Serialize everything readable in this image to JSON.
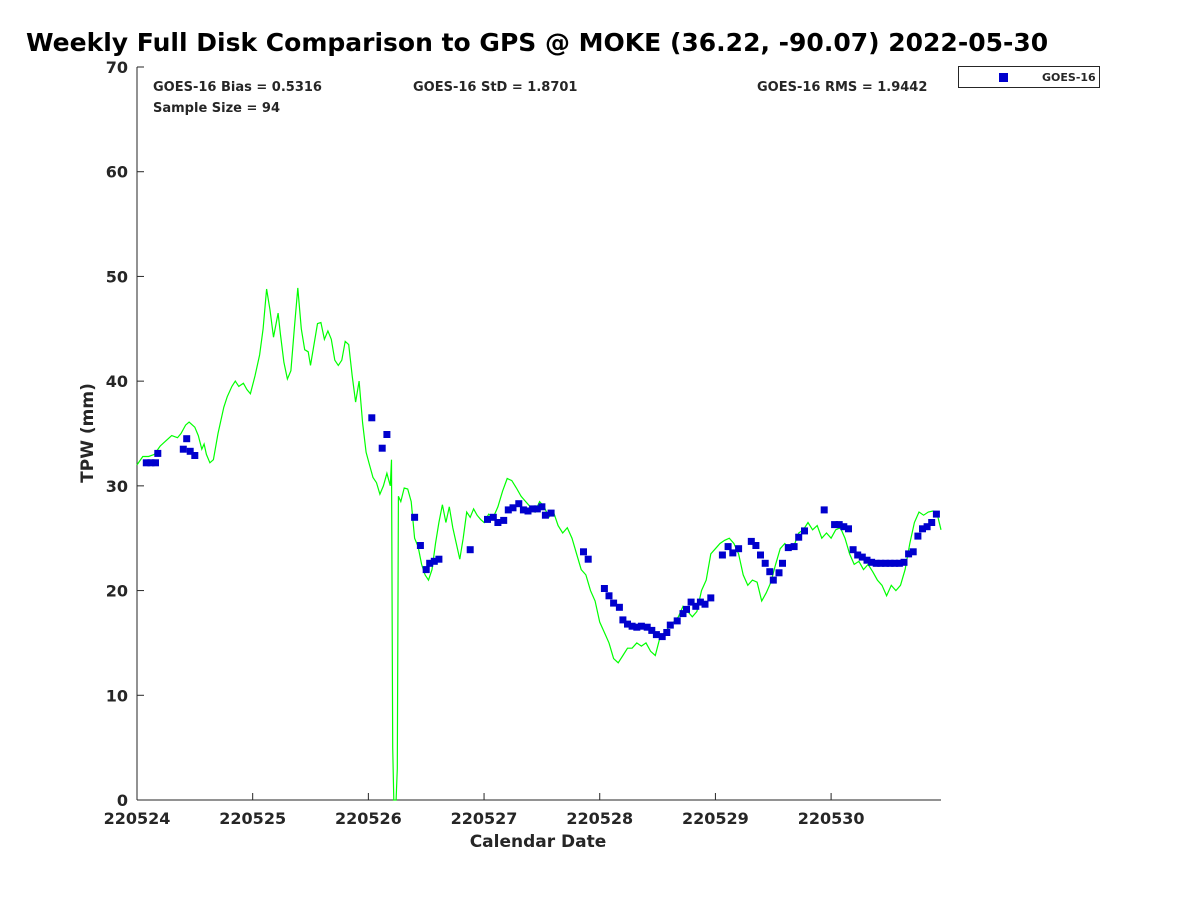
{
  "chart_data": {
    "type": "scatter",
    "title": "Weekly Full Disk Comparison to GPS @ MOKE (36.22, -90.07) 2022-05-30",
    "xlabel": "Calendar Date",
    "ylabel": "TPW (mm)",
    "xlim": [
      0,
      6.95
    ],
    "ylim": [
      0,
      70
    ],
    "x_ticks": [
      {
        "value": 0,
        "label": "220524"
      },
      {
        "value": 1,
        "label": "220525"
      },
      {
        "value": 2,
        "label": "220526"
      },
      {
        "value": 3,
        "label": "220527"
      },
      {
        "value": 4,
        "label": "220528"
      },
      {
        "value": 5,
        "label": "220529"
      },
      {
        "value": 6,
        "label": "220530"
      }
    ],
    "y_ticks": [
      0,
      10,
      20,
      30,
      40,
      50,
      60,
      70
    ],
    "legend_position": "top-right-outside",
    "grid": false,
    "stats": {
      "bias": "GOES-16 Bias = 0.5316",
      "std": "GOES-16 StD = 1.8701",
      "rms": "GOES-16 RMS = 1.9442",
      "sample": "Sample Size = 94"
    },
    "series": [
      {
        "name": "GPS",
        "kind": "line",
        "color": "#00ff00",
        "points": [
          [
            0,
            32.0
          ],
          [
            0.05,
            32.8
          ],
          [
            0.1,
            32.8
          ],
          [
            0.15,
            33.0
          ],
          [
            0.2,
            33.8
          ],
          [
            0.25,
            34.3
          ],
          [
            0.3,
            34.8
          ],
          [
            0.35,
            34.6
          ],
          [
            0.38,
            35.0
          ],
          [
            0.42,
            35.8
          ],
          [
            0.45,
            36.1
          ],
          [
            0.5,
            35.6
          ],
          [
            0.53,
            34.8
          ],
          [
            0.56,
            33.5
          ],
          [
            0.58,
            34.0
          ],
          [
            0.6,
            33.0
          ],
          [
            0.63,
            32.2
          ],
          [
            0.66,
            32.5
          ],
          [
            0.7,
            35.0
          ],
          [
            0.75,
            37.5
          ],
          [
            0.78,
            38.5
          ],
          [
            0.82,
            39.5
          ],
          [
            0.85,
            40.0
          ],
          [
            0.88,
            39.5
          ],
          [
            0.92,
            39.8
          ],
          [
            0.95,
            39.2
          ],
          [
            0.98,
            38.8
          ],
          [
            1.02,
            40.5
          ],
          [
            1.06,
            42.5
          ],
          [
            1.09,
            45.0
          ],
          [
            1.12,
            48.8
          ],
          [
            1.15,
            46.8
          ],
          [
            1.18,
            44.2
          ],
          [
            1.22,
            46.5
          ],
          [
            1.24,
            44.5
          ],
          [
            1.27,
            41.8
          ],
          [
            1.3,
            40.2
          ],
          [
            1.33,
            41.0
          ],
          [
            1.36,
            45.0
          ],
          [
            1.39,
            48.9
          ],
          [
            1.42,
            45.0
          ],
          [
            1.45,
            43.0
          ],
          [
            1.48,
            42.8
          ],
          [
            1.5,
            41.5
          ],
          [
            1.53,
            43.5
          ],
          [
            1.56,
            45.5
          ],
          [
            1.59,
            45.6
          ],
          [
            1.62,
            44.0
          ],
          [
            1.65,
            44.8
          ],
          [
            1.68,
            44.0
          ],
          [
            1.71,
            42.0
          ],
          [
            1.74,
            41.5
          ],
          [
            1.77,
            42.0
          ],
          [
            1.8,
            43.8
          ],
          [
            1.83,
            43.5
          ],
          [
            1.86,
            40.5
          ],
          [
            1.89,
            38.0
          ],
          [
            1.92,
            40.0
          ],
          [
            1.95,
            36.0
          ],
          [
            1.98,
            33.2
          ],
          [
            2.01,
            32.0
          ],
          [
            2.04,
            30.8
          ],
          [
            2.07,
            30.3
          ],
          [
            2.1,
            29.2
          ],
          [
            2.13,
            30.0
          ],
          [
            2.16,
            31.2
          ],
          [
            2.19,
            30.0
          ],
          [
            2.2,
            32.5
          ],
          [
            2.21,
            5.0
          ],
          [
            2.22,
            0
          ],
          [
            2.24,
            0
          ],
          [
            2.25,
            3.0
          ],
          [
            2.26,
            29.0
          ],
          [
            2.28,
            28.5
          ],
          [
            2.31,
            29.8
          ],
          [
            2.34,
            29.7
          ],
          [
            2.37,
            28.5
          ],
          [
            2.4,
            25.0
          ],
          [
            2.43,
            24.2
          ],
          [
            2.46,
            22.5
          ],
          [
            2.49,
            21.5
          ],
          [
            2.52,
            21.0
          ],
          [
            2.55,
            22.0
          ],
          [
            2.58,
            24.5
          ],
          [
            2.61,
            26.5
          ],
          [
            2.64,
            28.2
          ],
          [
            2.67,
            26.5
          ],
          [
            2.7,
            28.0
          ],
          [
            2.73,
            26.0
          ],
          [
            2.76,
            24.5
          ],
          [
            2.79,
            23.0
          ],
          [
            2.82,
            25.0
          ],
          [
            2.85,
            27.5
          ],
          [
            2.88,
            27.0
          ],
          [
            2.91,
            27.8
          ],
          [
            2.94,
            27.2
          ],
          [
            2.97,
            26.8
          ],
          [
            3.0,
            26.5
          ],
          [
            3.04,
            27.3
          ],
          [
            3.08,
            27.0
          ],
          [
            3.12,
            28.0
          ],
          [
            3.16,
            29.5
          ],
          [
            3.2,
            30.7
          ],
          [
            3.24,
            30.5
          ],
          [
            3.28,
            29.8
          ],
          [
            3.32,
            29.0
          ],
          [
            3.36,
            28.5
          ],
          [
            3.4,
            28.0
          ],
          [
            3.44,
            27.5
          ],
          [
            3.48,
            28.5
          ],
          [
            3.52,
            28.0
          ],
          [
            3.56,
            27.0
          ],
          [
            3.6,
            27.5
          ],
          [
            3.64,
            26.2
          ],
          [
            3.68,
            25.5
          ],
          [
            3.72,
            26.0
          ],
          [
            3.76,
            25.0
          ],
          [
            3.8,
            23.5
          ],
          [
            3.84,
            22.0
          ],
          [
            3.88,
            21.5
          ],
          [
            3.92,
            20.0
          ],
          [
            3.96,
            19.0
          ],
          [
            4.0,
            17.0
          ],
          [
            4.04,
            16.0
          ],
          [
            4.08,
            15.0
          ],
          [
            4.12,
            13.5
          ],
          [
            4.16,
            13.1
          ],
          [
            4.2,
            13.8
          ],
          [
            4.24,
            14.5
          ],
          [
            4.28,
            14.5
          ],
          [
            4.32,
            15.0
          ],
          [
            4.36,
            14.7
          ],
          [
            4.4,
            15.0
          ],
          [
            4.44,
            14.2
          ],
          [
            4.48,
            13.8
          ],
          [
            4.52,
            15.5
          ],
          [
            4.56,
            16.0
          ],
          [
            4.6,
            16.5
          ],
          [
            4.64,
            17.0
          ],
          [
            4.68,
            17.5
          ],
          [
            4.72,
            18.5
          ],
          [
            4.76,
            18.0
          ],
          [
            4.8,
            17.5
          ],
          [
            4.84,
            18.0
          ],
          [
            4.88,
            20.0
          ],
          [
            4.92,
            21.0
          ],
          [
            4.96,
            23.5
          ],
          [
            5.0,
            24.0
          ],
          [
            5.04,
            24.5
          ],
          [
            5.08,
            24.8
          ],
          [
            5.12,
            25.0
          ],
          [
            5.16,
            24.5
          ],
          [
            5.2,
            23.5
          ],
          [
            5.24,
            21.5
          ],
          [
            5.28,
            20.5
          ],
          [
            5.32,
            21.0
          ],
          [
            5.36,
            20.8
          ],
          [
            5.4,
            19.0
          ],
          [
            5.44,
            19.8
          ],
          [
            5.48,
            20.8
          ],
          [
            5.52,
            22.5
          ],
          [
            5.56,
            24.0
          ],
          [
            5.6,
            24.5
          ],
          [
            5.64,
            24.0
          ],
          [
            5.68,
            24.3
          ],
          [
            5.72,
            25.5
          ],
          [
            5.76,
            25.8
          ],
          [
            5.8,
            26.5
          ],
          [
            5.84,
            25.8
          ],
          [
            5.88,
            26.2
          ],
          [
            5.92,
            25.0
          ],
          [
            5.96,
            25.5
          ],
          [
            6.0,
            25.0
          ],
          [
            6.04,
            25.8
          ],
          [
            6.08,
            26.0
          ],
          [
            6.12,
            25.0
          ],
          [
            6.16,
            23.5
          ],
          [
            6.2,
            22.5
          ],
          [
            6.24,
            22.8
          ],
          [
            6.28,
            22.0
          ],
          [
            6.32,
            22.5
          ],
          [
            6.36,
            21.8
          ],
          [
            6.4,
            21.0
          ],
          [
            6.44,
            20.5
          ],
          [
            6.48,
            19.5
          ],
          [
            6.52,
            20.5
          ],
          [
            6.56,
            20.0
          ],
          [
            6.6,
            20.5
          ],
          [
            6.64,
            22.0
          ],
          [
            6.68,
            24.5
          ],
          [
            6.72,
            26.5
          ],
          [
            6.76,
            27.5
          ],
          [
            6.8,
            27.2
          ],
          [
            6.84,
            27.5
          ],
          [
            6.88,
            27.6
          ],
          [
            6.92,
            27.2
          ],
          [
            6.95,
            25.8
          ]
        ]
      },
      {
        "name": "GOES-16",
        "kind": "scatter",
        "color": "#0000cd",
        "points": [
          [
            0.08,
            32.2
          ],
          [
            0.12,
            32.2
          ],
          [
            0.16,
            32.2
          ],
          [
            0.18,
            33.1
          ],
          [
            0.4,
            33.5
          ],
          [
            0.43,
            34.5
          ],
          [
            0.46,
            33.3
          ],
          [
            0.5,
            32.9
          ],
          [
            2.03,
            36.5
          ],
          [
            2.12,
            33.6
          ],
          [
            2.16,
            34.9
          ],
          [
            2.4,
            27.0
          ],
          [
            2.45,
            24.3
          ],
          [
            2.5,
            22.0
          ],
          [
            2.53,
            22.6
          ],
          [
            2.57,
            22.8
          ],
          [
            2.61,
            23.0
          ],
          [
            2.88,
            23.9
          ],
          [
            3.03,
            26.8
          ],
          [
            3.08,
            27.0
          ],
          [
            3.12,
            26.5
          ],
          [
            3.17,
            26.7
          ],
          [
            3.21,
            27.7
          ],
          [
            3.25,
            27.9
          ],
          [
            3.3,
            28.3
          ],
          [
            3.34,
            27.7
          ],
          [
            3.38,
            27.6
          ],
          [
            3.42,
            27.8
          ],
          [
            3.46,
            27.8
          ],
          [
            3.5,
            28.0
          ],
          [
            3.53,
            27.2
          ],
          [
            3.58,
            27.4
          ],
          [
            3.86,
            23.7
          ],
          [
            3.9,
            23.0
          ],
          [
            4.04,
            20.2
          ],
          [
            4.08,
            19.5
          ],
          [
            4.12,
            18.8
          ],
          [
            4.17,
            18.4
          ],
          [
            4.2,
            17.2
          ],
          [
            4.24,
            16.8
          ],
          [
            4.28,
            16.6
          ],
          [
            4.32,
            16.5
          ],
          [
            4.36,
            16.6
          ],
          [
            4.41,
            16.5
          ],
          [
            4.45,
            16.2
          ],
          [
            4.49,
            15.8
          ],
          [
            4.54,
            15.6
          ],
          [
            4.58,
            16.0
          ],
          [
            4.61,
            16.7
          ],
          [
            4.67,
            17.1
          ],
          [
            4.72,
            17.8
          ],
          [
            4.75,
            18.2
          ],
          [
            4.79,
            18.9
          ],
          [
            4.83,
            18.5
          ],
          [
            4.87,
            18.9
          ],
          [
            4.91,
            18.7
          ],
          [
            4.96,
            19.3
          ],
          [
            5.06,
            23.4
          ],
          [
            5.11,
            24.2
          ],
          [
            5.15,
            23.6
          ],
          [
            5.2,
            24.0
          ],
          [
            5.31,
            24.7
          ],
          [
            5.35,
            24.3
          ],
          [
            5.39,
            23.4
          ],
          [
            5.43,
            22.6
          ],
          [
            5.47,
            21.8
          ],
          [
            5.5,
            21.0
          ],
          [
            5.55,
            21.7
          ],
          [
            5.58,
            22.6
          ],
          [
            5.63,
            24.1
          ],
          [
            5.68,
            24.2
          ],
          [
            5.72,
            25.1
          ],
          [
            5.77,
            25.7
          ],
          [
            5.94,
            27.7
          ],
          [
            6.03,
            26.3
          ],
          [
            6.07,
            26.3
          ],
          [
            6.11,
            26.1
          ],
          [
            6.15,
            25.9
          ],
          [
            6.19,
            23.9
          ],
          [
            6.23,
            23.4
          ],
          [
            6.27,
            23.2
          ],
          [
            6.31,
            22.9
          ],
          [
            6.35,
            22.7
          ],
          [
            6.39,
            22.6
          ],
          [
            6.43,
            22.6
          ],
          [
            6.47,
            22.6
          ],
          [
            6.51,
            22.6
          ],
          [
            6.55,
            22.6
          ],
          [
            6.59,
            22.6
          ],
          [
            6.63,
            22.7
          ],
          [
            6.67,
            23.5
          ],
          [
            6.71,
            23.7
          ],
          [
            6.75,
            25.2
          ],
          [
            6.79,
            25.9
          ],
          [
            6.83,
            26.1
          ],
          [
            6.87,
            26.5
          ],
          [
            6.91,
            27.3
          ]
        ]
      }
    ]
  },
  "legend": {
    "label": "GOES-16"
  }
}
